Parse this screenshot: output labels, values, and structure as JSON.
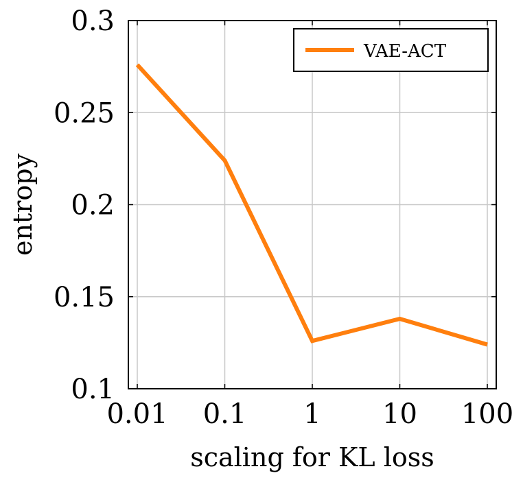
{
  "chart_data": {
    "type": "line",
    "xscale": "log",
    "x": [
      0.01,
      0.1,
      1,
      10,
      100
    ],
    "x_tick_labels": [
      "0.01",
      "0.1",
      "1",
      "10",
      "100"
    ],
    "y_ticks": [
      0.1,
      0.15,
      0.2,
      0.25,
      0.3
    ],
    "y_tick_labels": [
      "0.1",
      "0.15",
      "0.2",
      "0.25",
      "0.3"
    ],
    "series": [
      {
        "name": "VAE-ACT",
        "color": "#ff7f0e",
        "values": [
          0.276,
          0.224,
          0.126,
          0.138,
          0.124
        ]
      }
    ],
    "xlabel": "scaling for KL loss",
    "ylabel": "entropy",
    "ylim": [
      0.1,
      0.3
    ],
    "grid": true,
    "legend_position": "top-right"
  }
}
